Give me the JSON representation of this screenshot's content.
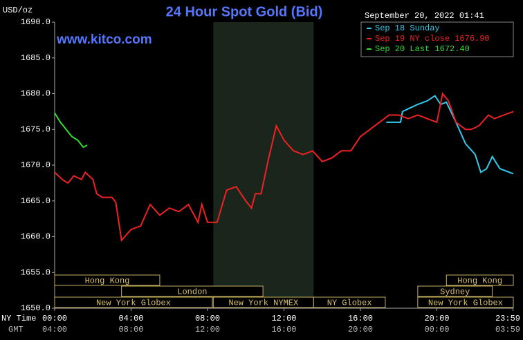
{
  "chart_data": {
    "type": "line",
    "title": "24 Hour Spot Gold (Bid)",
    "y_unit": "USD/oz",
    "watermark": "www.kitco.com",
    "timestamp": "September 20, 2022 01:41",
    "x_label_ny": "NY Time",
    "x_label_gmt": "GMT",
    "xlim": [
      0,
      24
    ],
    "xticks": [
      {
        "value": 0,
        "label": "00:00"
      },
      {
        "value": 4,
        "label": "04:00"
      },
      {
        "value": 8,
        "label": "08:00"
      },
      {
        "value": 12,
        "label": "12:00"
      },
      {
        "value": 16,
        "label": "16:00"
      },
      {
        "value": 20,
        "label": "20:00"
      },
      {
        "value": 23.983,
        "label": "23:59"
      }
    ],
    "gmt_ticks": [
      "04:00",
      "08:00",
      "12:00",
      "16:00",
      "20:00",
      "00:00",
      "03:59"
    ],
    "ylim": [
      1650,
      1690
    ],
    "yticks": [
      {
        "value": 1650,
        "label": "1650.0"
      },
      {
        "value": 1655,
        "label": "1655.0"
      },
      {
        "value": 1660,
        "label": "1660.0"
      },
      {
        "value": 1665,
        "label": "1665.0"
      },
      {
        "value": 1670,
        "label": "1670.0"
      },
      {
        "value": 1675,
        "label": "1675.0"
      },
      {
        "value": 1680,
        "label": "1680.0"
      },
      {
        "value": 1685,
        "label": "1685.0"
      },
      {
        "value": 1690,
        "label": "1690.0"
      }
    ],
    "grid": false,
    "legend": "top-right",
    "shaded": [
      8.3,
      13.55
    ],
    "series": [
      {
        "name": "Sep 18 Sunday",
        "color": "#33ccee",
        "x": [
          17.35,
          18.1,
          18.2,
          18.6,
          19,
          19.5,
          19.9,
          20.2,
          20.5,
          21,
          21.5,
          22,
          22.3,
          22.6,
          22.9,
          23.3,
          24
        ],
        "values": [
          1676,
          1676,
          1677.5,
          1678,
          1678.5,
          1679,
          1679.7,
          1678.5,
          1678.8,
          1676,
          1673,
          1671.5,
          1669,
          1669.5,
          1671.2,
          1669.5,
          1668.8
        ]
      },
      {
        "name": "Sep 19 NY close 1676.90",
        "color": "#ee2222",
        "x": [
          0,
          0.4,
          0.7,
          1,
          1.4,
          1.6,
          2,
          2.2,
          2.5,
          3,
          3.2,
          3.5,
          4,
          4.5,
          5,
          5.5,
          6,
          6.5,
          7,
          7.5,
          7.7,
          8,
          8.5,
          9,
          9.5,
          10,
          10.3,
          10.5,
          10.8,
          11.2,
          11.6,
          12,
          12.5,
          13,
          13.5,
          14,
          14.5,
          15,
          15.5,
          16,
          16.5,
          17,
          17.5,
          18,
          18.5,
          19,
          19.5,
          20,
          20.3,
          20.6,
          21,
          21.5,
          21.8,
          22.2,
          22.7,
          23,
          23.5,
          24
        ],
        "values": [
          1669,
          1668,
          1667.5,
          1668.5,
          1668,
          1669,
          1668,
          1666,
          1665.5,
          1665.5,
          1664.8,
          1659.5,
          1661,
          1661.5,
          1664.5,
          1663,
          1664,
          1663.5,
          1664.5,
          1662,
          1664.5,
          1662,
          1662,
          1666.5,
          1667,
          1665,
          1664,
          1666,
          1666,
          1671,
          1675.5,
          1673.5,
          1672,
          1671.5,
          1672,
          1670.5,
          1671,
          1672,
          1672,
          1674,
          1675,
          1676,
          1677,
          1677,
          1676.5,
          1677,
          1676.5,
          1676,
          1680,
          1679,
          1676,
          1675,
          1675,
          1675.5,
          1677,
          1676.5,
          1677,
          1677.5
        ]
      },
      {
        "name": "Sep 20 Last 1672.40",
        "color": "#33dd33",
        "x": [
          0,
          0.3,
          0.6,
          0.9,
          1.2,
          1.5,
          1.7
        ],
        "values": [
          1677.3,
          1676,
          1675,
          1674,
          1673.5,
          1672.5,
          1672.8
        ]
      }
    ],
    "sessions": [
      {
        "name": "Hong Kong",
        "start": 0,
        "end": 5.5,
        "row": 0
      },
      {
        "name": "London",
        "start": 3.5,
        "end": 10.9,
        "row": 1
      },
      {
        "name": "New York Globex",
        "start": 0,
        "end": 8.25,
        "row": 2
      },
      {
        "name": "New York NYMEX",
        "start": 8.3,
        "end": 13.55,
        "row": 2
      },
      {
        "name": "NY Globex",
        "start": 13.55,
        "end": 17.3,
        "row": 2
      },
      {
        "name": "Sydney",
        "start": 19,
        "end": 22.9,
        "row": 1
      },
      {
        "name": "Hong Kong",
        "start": 20.5,
        "end": 24,
        "row": 0
      },
      {
        "name": "New York Globex",
        "start": 19,
        "end": 24,
        "row": 2
      }
    ]
  }
}
